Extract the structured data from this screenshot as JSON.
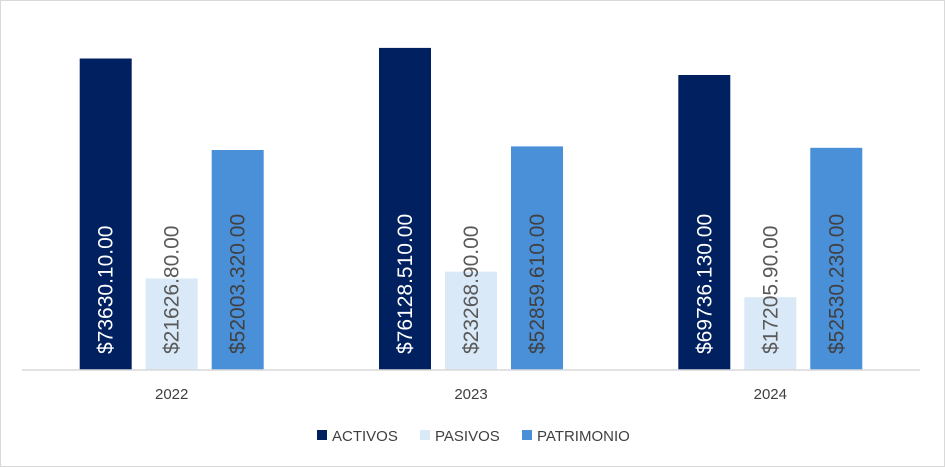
{
  "chart_data": {
    "type": "bar",
    "categories": [
      "2022",
      "2023",
      "2024"
    ],
    "series": [
      {
        "name": "ACTIVOS",
        "color": "#002060",
        "label_color": "#ffffff",
        "values": [
          73630.1,
          76128.51,
          69736.13
        ],
        "labels": [
          "$73630.10.00",
          "$76128.510.00",
          "$69736.130.00"
        ]
      },
      {
        "name": "PASIVOS",
        "color": "#dae9f7",
        "label_color": "#595959",
        "values": [
          21626.8,
          23268.9,
          17205.9
        ],
        "labels": [
          "$21626.80.00",
          "$23268.90.00",
          "$17205.90.00"
        ]
      },
      {
        "name": "PATRIMONIO",
        "color": "#4a90d9",
        "label_color": "#404040",
        "values": [
          52003.32,
          52859.61,
          52530.23
        ],
        "labels": [
          "$52003.320.00",
          "$52859.610.00",
          "$52530.230.00"
        ]
      }
    ],
    "ylim": [
      0,
      78000
    ],
    "grid": false,
    "legend_position": "bottom"
  }
}
